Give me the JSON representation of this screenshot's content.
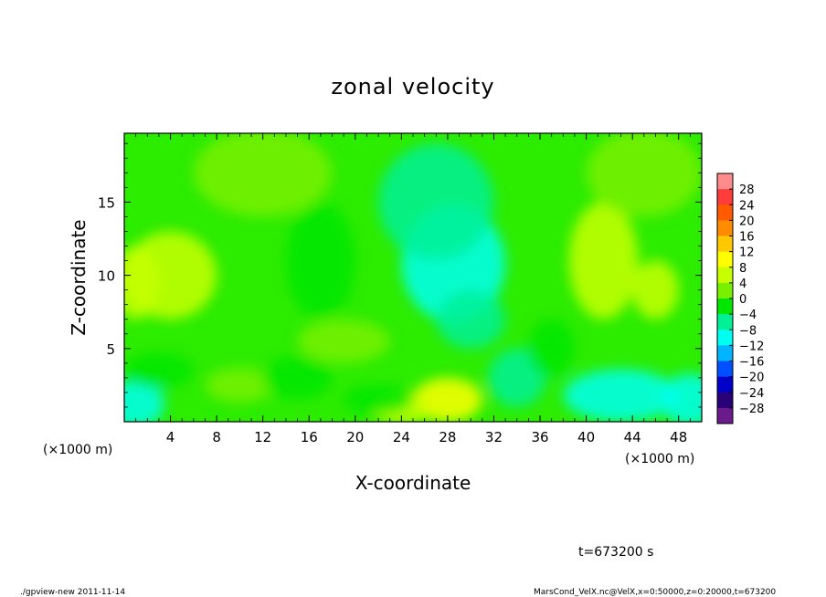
{
  "chart_data": {
    "type": "heatmap",
    "title": "zonal velocity",
    "xlabel": "X-coordinate",
    "ylabel": "Z-coordinate",
    "x_unit": "(×1000 m)",
    "xlim": [
      0,
      50
    ],
    "ylim": [
      0,
      19.7
    ],
    "x_ticks": [
      4,
      8,
      12,
      16,
      20,
      24,
      28,
      32,
      36,
      40,
      44,
      48
    ],
    "y_ticks": [
      5,
      10,
      15
    ],
    "colorbar": {
      "levels": [
        28,
        24,
        20,
        16,
        12,
        8,
        4,
        0,
        -4,
        -8,
        -12,
        -16,
        -20,
        -24,
        -28
      ],
      "colors": [
        "#ff8c8c",
        "#ff3c3c",
        "#ff5a00",
        "#ff8c00",
        "#ffc800",
        "#ffff00",
        "#c8ff00",
        "#78f000",
        "#00e600",
        "#00f096",
        "#00fff0",
        "#00b4ff",
        "#0050ff",
        "#0000c8",
        "#280078",
        "#6a1a8a"
      ]
    },
    "annotations": {
      "time": "t=673200 s",
      "footer_left": "./gpview-new  2011-11-14",
      "footer_right": "MarsCond_VelX.nc@VelX,x=0:50000,z=0:20000,t=673200"
    },
    "field_features": [
      {
        "x": 28.5,
        "z": 10.8,
        "value": -10,
        "rx": 4.5,
        "rz": 4.0
      },
      {
        "x": 27,
        "z": 15,
        "value": -6,
        "rx": 5,
        "rz": 4
      },
      {
        "x": 4,
        "z": 10,
        "value": 7,
        "rx": 4,
        "rz": 3
      },
      {
        "x": 1,
        "z": 9.5,
        "value": 6,
        "rx": 2,
        "rz": 2.5
      },
      {
        "x": 41.5,
        "z": 11,
        "value": 7,
        "rx": 3,
        "rz": 4
      },
      {
        "x": 46,
        "z": 9,
        "value": 5,
        "rx": 2,
        "rz": 2
      },
      {
        "x": 28,
        "z": 1.5,
        "value": 8,
        "rx": 3,
        "rz": 1.5
      },
      {
        "x": 24,
        "z": 0.8,
        "value": 6,
        "rx": 2.5,
        "rz": 1
      },
      {
        "x": 19,
        "z": 5.5,
        "value": 3,
        "rx": 4,
        "rz": 1.5
      },
      {
        "x": 10,
        "z": 2.5,
        "value": 3,
        "rx": 3,
        "rz": 1.2
      },
      {
        "x": 1,
        "z": 1.2,
        "value": -10,
        "rx": 2.5,
        "rz": 1.6
      },
      {
        "x": 15,
        "z": 3,
        "value": -4,
        "rx": 3,
        "rz": 1.5
      },
      {
        "x": 3,
        "z": 3.5,
        "value": -4,
        "rx": 3,
        "rz": 1.2
      },
      {
        "x": 34,
        "z": 3,
        "value": -6,
        "rx": 2.5,
        "rz": 2
      },
      {
        "x": 43,
        "z": 1.8,
        "value": -9,
        "rx": 5,
        "rz": 1.8
      },
      {
        "x": 49,
        "z": 1.5,
        "value": -10,
        "rx": 2.5,
        "rz": 1.8
      },
      {
        "x": 22,
        "z": 1.5,
        "value": -4,
        "rx": 3,
        "rz": 1
      },
      {
        "x": 30,
        "z": 7,
        "value": -6,
        "rx": 3,
        "rz": 2
      },
      {
        "x": 37,
        "z": 5,
        "value": -3,
        "rx": 2,
        "rz": 2
      },
      {
        "x": 12,
        "z": 17,
        "value": 3,
        "rx": 6,
        "rz": 3
      },
      {
        "x": 45,
        "z": 17,
        "value": 2,
        "rx": 5,
        "rz": 3
      },
      {
        "x": 17,
        "z": 11,
        "value": -2,
        "rx": 3,
        "rz": 4
      }
    ]
  }
}
